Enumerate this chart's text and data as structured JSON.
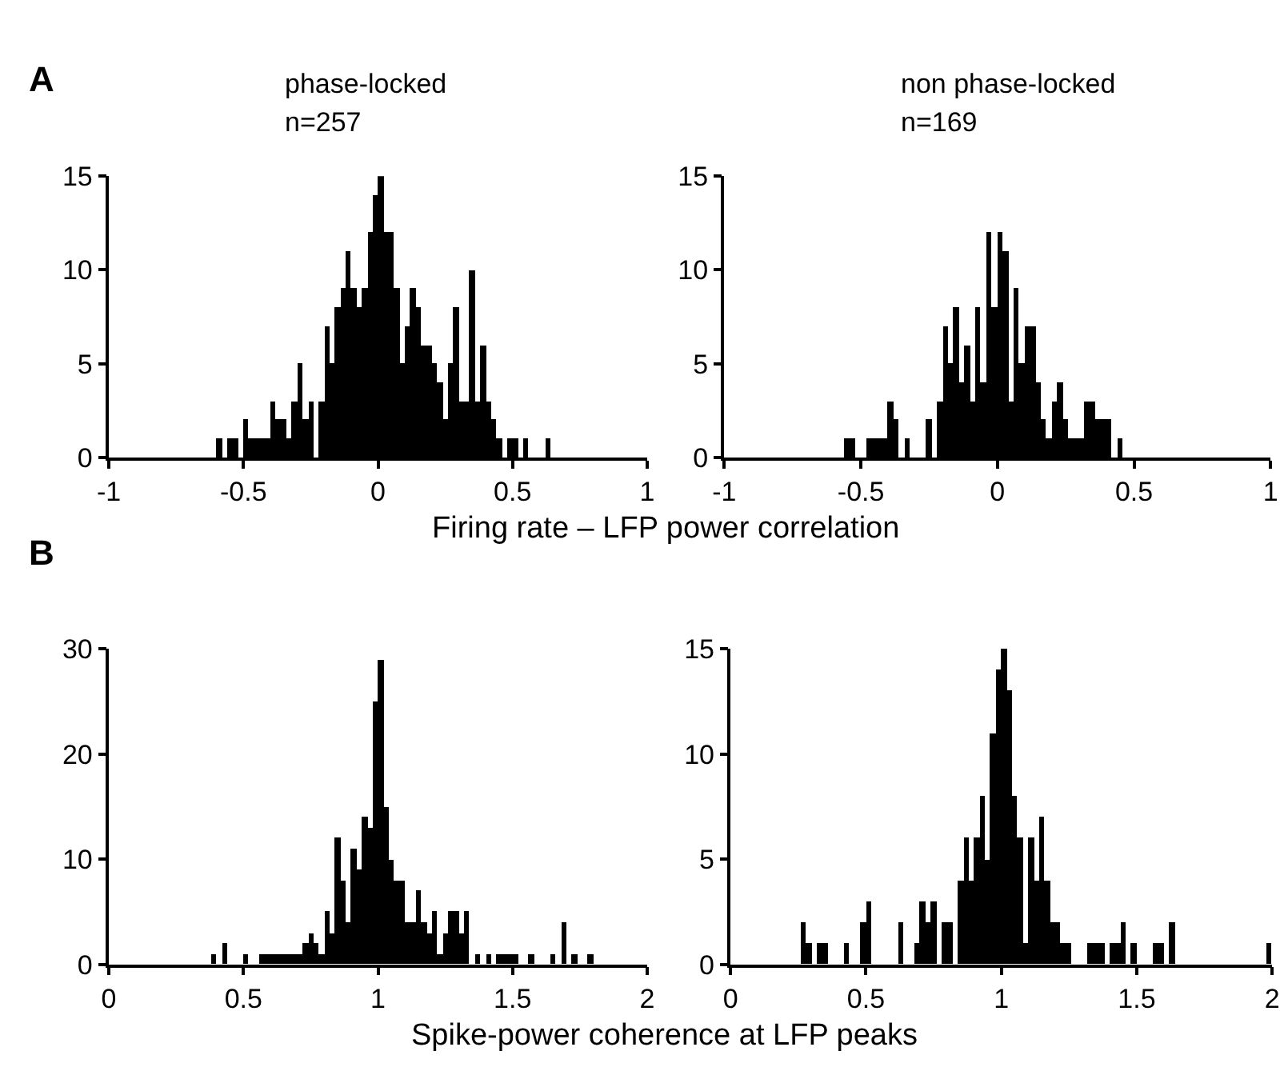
{
  "chart_data": [
    {
      "type": "histogram",
      "title": "phase-locked",
      "subtitle": "n=257",
      "annotations": [
        "A"
      ],
      "xlabel": "Firing rate – LFP power correlation",
      "color": "#000000",
      "bins": [
        -0.6,
        -0.58,
        -0.56,
        -0.54,
        -0.52,
        -0.5,
        -0.48,
        -0.46,
        -0.44,
        -0.42,
        -0.4,
        -0.38,
        -0.36,
        -0.34,
        -0.32,
        -0.3,
        -0.28,
        -0.26,
        -0.24,
        -0.22,
        -0.2,
        -0.18,
        -0.16,
        -0.14,
        -0.12,
        -0.1,
        -0.08,
        -0.06,
        -0.04,
        -0.02,
        0,
        0.02,
        0.04,
        0.06,
        0.08,
        0.1,
        0.12,
        0.14,
        0.16,
        0.18,
        0.2,
        0.22,
        0.24,
        0.26,
        0.28,
        0.3,
        0.32,
        0.34,
        0.36,
        0.38,
        0.4,
        0.42,
        0.44,
        0.46,
        0.48,
        0.5,
        0.52,
        0.54,
        0.56,
        0.58,
        0.6,
        0.62,
        0.64
      ],
      "values": [
        1,
        0,
        1,
        1,
        0,
        2,
        1,
        1,
        1,
        1,
        3,
        2,
        2,
        1,
        3,
        5,
        2,
        3,
        0,
        3,
        7,
        5,
        8,
        9,
        11,
        9,
        8,
        9,
        12,
        14,
        15,
        12,
        12,
        9,
        5,
        7,
        9,
        8,
        6,
        6,
        5,
        4,
        2,
        5,
        8,
        3,
        3,
        10,
        3,
        6,
        3,
        2,
        1,
        0,
        1,
        1,
        0,
        1,
        0,
        0,
        0,
        1
      ],
      "xlim": [
        -1,
        1
      ],
      "xticks": [
        -1,
        -0.5,
        0,
        0.5,
        1
      ],
      "ylim": [
        0,
        15
      ],
      "yticks": [
        0,
        5,
        10,
        15
      ]
    },
    {
      "type": "histogram",
      "title": "non phase-locked",
      "subtitle": "n=169",
      "color": "#000000",
      "bins": [
        -0.56,
        -0.54,
        -0.52,
        -0.5,
        -0.48,
        -0.46,
        -0.44,
        -0.42,
        -0.4,
        -0.38,
        -0.36,
        -0.34,
        -0.32,
        -0.3,
        -0.28,
        -0.26,
        -0.24,
        -0.22,
        -0.2,
        -0.18,
        -0.16,
        -0.14,
        -0.12,
        -0.1,
        -0.08,
        -0.06,
        -0.04,
        -0.02,
        0,
        0.02,
        0.04,
        0.06,
        0.08,
        0.1,
        0.12,
        0.14,
        0.16,
        0.18,
        0.2,
        0.22,
        0.24,
        0.26,
        0.28,
        0.3,
        0.32,
        0.34,
        0.36,
        0.38,
        0.4,
        0.42,
        0.44,
        0.46
      ],
      "values": [
        1,
        1,
        0,
        0,
        1,
        1,
        1,
        1,
        3,
        2,
        0,
        1,
        0,
        0,
        0,
        2,
        0,
        3,
        7,
        5,
        8,
        4,
        6,
        3,
        8,
        4,
        12,
        8,
        12,
        11,
        3,
        9,
        5,
        7,
        7,
        4,
        2,
        1,
        3,
        4,
        2,
        1,
        1,
        1,
        3,
        3,
        2,
        2,
        2,
        0,
        1
      ],
      "xlim": [
        -1,
        1
      ],
      "xticks": [
        -1,
        -0.5,
        0,
        0.5,
        1
      ],
      "ylim": [
        0,
        15
      ],
      "yticks": [
        0,
        5,
        10,
        15
      ]
    },
    {
      "type": "histogram",
      "annotations": [
        "B"
      ],
      "xlabel": "Spike-power coherence at LFP peaks",
      "color": "#000000",
      "bins": [
        0.38,
        0.4,
        0.42,
        0.44,
        0.46,
        0.48,
        0.5,
        0.52,
        0.54,
        0.56,
        0.58,
        0.6,
        0.62,
        0.64,
        0.66,
        0.68,
        0.7,
        0.72,
        0.74,
        0.76,
        0.78,
        0.8,
        0.82,
        0.84,
        0.86,
        0.88,
        0.9,
        0.92,
        0.94,
        0.96,
        0.98,
        1,
        1.02,
        1.04,
        1.06,
        1.08,
        1.1,
        1.12,
        1.14,
        1.16,
        1.18,
        1.2,
        1.22,
        1.24,
        1.26,
        1.28,
        1.3,
        1.32,
        1.34,
        1.36,
        1.38,
        1.4,
        1.42,
        1.44,
        1.46,
        1.48,
        1.5,
        1.52,
        1.54,
        1.56,
        1.58,
        1.6,
        1.62,
        1.64,
        1.66,
        1.68,
        1.7,
        1.72,
        1.74,
        1.76,
        1.78,
        1.8
      ],
      "values": [
        1,
        0,
        2,
        0,
        0,
        0,
        1,
        0,
        0,
        1,
        1,
        1,
        1,
        1,
        1,
        1,
        1,
        2,
        3,
        2,
        1,
        5,
        3,
        12,
        8,
        4,
        11,
        9,
        14,
        13,
        25,
        29,
        15,
        10,
        8,
        8,
        4,
        4,
        7,
        4,
        3,
        5,
        1,
        3,
        5,
        5,
        3,
        5,
        0,
        1,
        0,
        1,
        0,
        1,
        1,
        1,
        1,
        0,
        0,
        1,
        0,
        0,
        0,
        1,
        0,
        4,
        0,
        1,
        0,
        0,
        1
      ],
      "xlim": [
        0,
        2
      ],
      "xticks": [
        0,
        0.5,
        1,
        1.5,
        2
      ],
      "ylim": [
        0,
        30
      ],
      "yticks": [
        0,
        10,
        20,
        30
      ]
    },
    {
      "type": "histogram",
      "color": "#000000",
      "bins": [
        0.26,
        0.28,
        0.3,
        0.32,
        0.34,
        0.36,
        0.38,
        0.4,
        0.42,
        0.44,
        0.46,
        0.48,
        0.5,
        0.52,
        0.54,
        0.56,
        0.58,
        0.6,
        0.62,
        0.64,
        0.66,
        0.68,
        0.7,
        0.72,
        0.74,
        0.76,
        0.78,
        0.8,
        0.82,
        0.84,
        0.86,
        0.88,
        0.9,
        0.92,
        0.94,
        0.96,
        0.98,
        1,
        1.02,
        1.04,
        1.06,
        1.08,
        1.1,
        1.12,
        1.14,
        1.16,
        1.18,
        1.2,
        1.22,
        1.24,
        1.26,
        1.28,
        1.3,
        1.32,
        1.34,
        1.36,
        1.38,
        1.4,
        1.42,
        1.44,
        1.46,
        1.48,
        1.5,
        1.52,
        1.54,
        1.56,
        1.58,
        1.6,
        1.62,
        1.64,
        1.66,
        1.68,
        1.7,
        1.72,
        1.74,
        1.76,
        1.78,
        1.8,
        1.82,
        1.84,
        1.86,
        1.88,
        1.9,
        1.92,
        1.94,
        1.96,
        1.98,
        2
      ],
      "values": [
        2,
        1,
        0,
        1,
        1,
        0,
        0,
        0,
        1,
        0,
        0,
        2,
        3,
        0,
        0,
        0,
        0,
        0,
        2,
        0,
        0,
        1,
        3,
        2,
        3,
        0,
        2,
        2,
        0,
        4,
        6,
        4,
        6,
        8,
        5,
        11,
        14,
        15,
        13,
        8,
        6,
        1,
        6,
        4,
        7,
        4,
        2,
        2,
        1,
        1,
        0,
        0,
        0,
        1,
        1,
        1,
        0,
        1,
        1,
        2,
        0,
        1,
        0,
        0,
        0,
        1,
        1,
        0,
        2,
        0,
        0,
        0,
        0,
        0,
        0,
        0,
        0,
        0,
        0,
        0,
        0,
        0,
        0,
        0,
        0,
        0,
        1
      ],
      "xlim": [
        0,
        2
      ],
      "xticks": [
        0,
        0.5,
        1,
        1.5,
        2
      ],
      "ylim": [
        0,
        15
      ],
      "yticks": [
        0,
        5,
        10,
        15
      ]
    }
  ]
}
